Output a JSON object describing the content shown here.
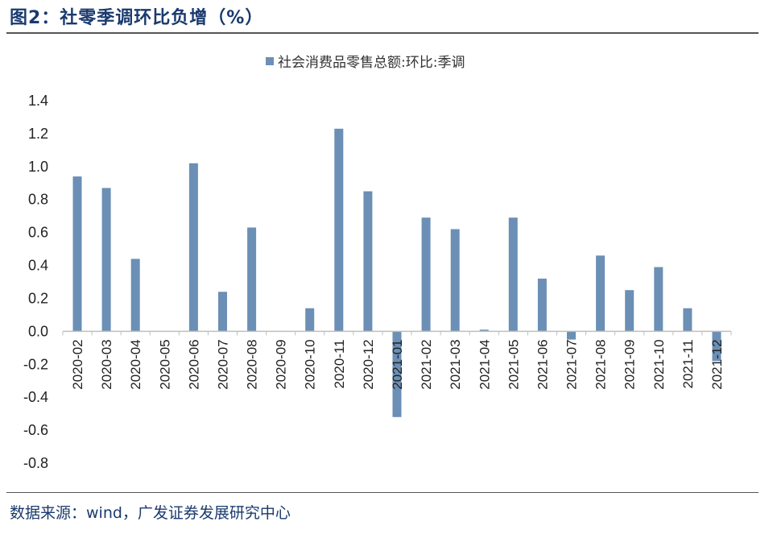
{
  "figure": {
    "title": "图2：社零季调环比负增（%）",
    "source": "数据来源：wind，广发证券发展研究中心"
  },
  "colors": {
    "bar": "#6b8fb5",
    "axis": "#bfbfbf",
    "text": "#1a3a6e"
  },
  "chart_data": {
    "type": "bar",
    "title": "",
    "xlabel": "",
    "ylabel": "",
    "ylim": [
      -0.8,
      1.4
    ],
    "yticks": [
      "1.4",
      "1.2",
      "1.0",
      "0.8",
      "0.6",
      "0.4",
      "0.2",
      "0.0",
      "-0.2",
      "-0.4",
      "-0.6",
      "-0.8"
    ],
    "grid": false,
    "legend_position": "top-center",
    "categories": [
      "2020-02",
      "2020-03",
      "2020-04",
      "2020-05",
      "2020-06",
      "2020-07",
      "2020-08",
      "2020-09",
      "2020-10",
      "2020-11",
      "2020-12",
      "2021-01",
      "2021-02",
      "2021-03",
      "2021-04",
      "2021-05",
      "2021-06",
      "2021-07",
      "2021-08",
      "2021-09",
      "2021-10",
      "2021-11",
      "2021-12"
    ],
    "series": [
      {
        "name": "社会消费品零售总额:环比:季调",
        "values": [
          0.94,
          0.87,
          0.44,
          0.0,
          1.02,
          0.24,
          0.63,
          0.0,
          0.14,
          1.23,
          0.85,
          -0.52,
          0.69,
          0.62,
          0.01,
          0.69,
          0.32,
          -0.05,
          0.46,
          0.25,
          0.39,
          0.14,
          -0.18
        ]
      }
    ]
  }
}
